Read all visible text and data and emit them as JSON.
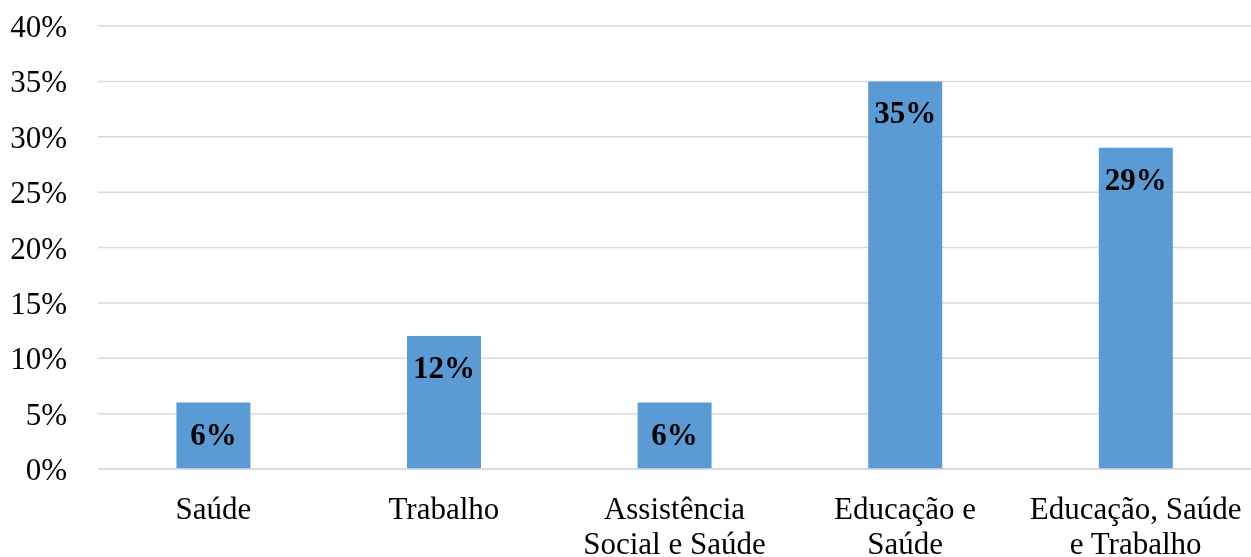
{
  "chart_data": {
    "type": "bar",
    "categories": [
      "Saúde",
      "Trabalho",
      "Assistência Social e Saúde",
      "Educação e Saúde",
      "Educação, Saúde e Trabalho"
    ],
    "values": [
      6,
      12,
      6,
      35,
      29
    ],
    "color": "#5b9bd5",
    "value_labels": [
      "6%",
      "12%",
      "6%",
      "35%",
      "29%"
    ],
    "ylim": [
      0,
      40
    ],
    "yticks": [
      {
        "value": 0,
        "label": "0%"
      },
      {
        "value": 5,
        "label": "5%"
      },
      {
        "value": 10,
        "label": "10%"
      },
      {
        "value": 15,
        "label": "15%"
      },
      {
        "value": 20,
        "label": "20%"
      },
      {
        "value": 25,
        "label": "25%"
      },
      {
        "value": 30,
        "label": "30%"
      },
      {
        "value": 35,
        "label": "35%"
      },
      {
        "value": 40,
        "label": "40%"
      }
    ],
    "grid": "y"
  }
}
